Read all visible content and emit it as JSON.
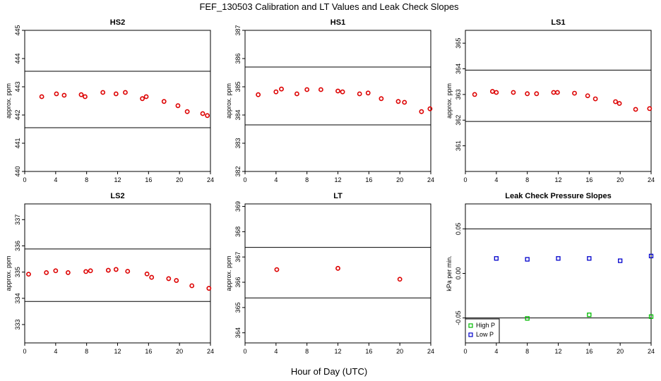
{
  "figure": {
    "title": "FEF_130503  Calibration and LT Values and Leak Check Slopes",
    "xlabel": "Hour of Day (UTC)"
  },
  "chart_data": [
    {
      "type": "scatter",
      "title": "HS2",
      "ylabel": "approx. ppm",
      "xlim": [
        0,
        24
      ],
      "ylim": [
        440,
        445
      ],
      "xticks": [
        0,
        4,
        8,
        12,
        16,
        20,
        24
      ],
      "yticks": [
        440,
        441,
        442,
        443,
        444,
        445
      ],
      "hlines": [
        443.55,
        441.55
      ],
      "grid": false,
      "series": [
        {
          "marker": "circle",
          "color": "#dd0000",
          "x": [
            2.2,
            4.1,
            5.1,
            7.3,
            7.8,
            10.1,
            11.8,
            13.0,
            15.2,
            15.7,
            18.0,
            19.8,
            21.0,
            23.0,
            23.6
          ],
          "y": [
            442.65,
            442.75,
            442.7,
            442.72,
            442.65,
            442.8,
            442.75,
            442.8,
            442.58,
            442.65,
            442.48,
            442.33,
            442.12,
            442.05,
            441.98
          ]
        }
      ]
    },
    {
      "type": "scatter",
      "title": "HS1",
      "ylabel": "approx. ppm",
      "xlim": [
        0,
        24
      ],
      "ylim": [
        382,
        387
      ],
      "xticks": [
        0,
        4,
        8,
        12,
        16,
        20,
        24
      ],
      "yticks": [
        382,
        383,
        384,
        385,
        386,
        387
      ],
      "hlines": [
        385.7,
        383.65
      ],
      "grid": false,
      "series": [
        {
          "marker": "circle",
          "color": "#dd0000",
          "x": [
            1.7,
            4.0,
            4.7,
            6.7,
            8.0,
            9.8,
            12.0,
            12.6,
            14.8,
            15.9,
            17.6,
            19.8,
            20.6,
            22.8,
            23.9
          ],
          "y": [
            384.72,
            384.82,
            384.92,
            384.75,
            384.9,
            384.9,
            384.85,
            384.82,
            384.75,
            384.78,
            384.58,
            384.48,
            384.45,
            384.12,
            384.22
          ]
        }
      ]
    },
    {
      "type": "scatter",
      "title": "LS1",
      "ylabel": "approx. ppm",
      "xlim": [
        0,
        24
      ],
      "ylim": [
        360,
        365.5
      ],
      "xticks": [
        0,
        4,
        8,
        12,
        16,
        20,
        24
      ],
      "yticks": [
        361,
        362,
        363,
        364,
        365
      ],
      "hlines": [
        363.95,
        361.95
      ],
      "grid": false,
      "series": [
        {
          "marker": "circle",
          "color": "#dd0000",
          "x": [
            1.2,
            3.5,
            4.0,
            6.2,
            8.0,
            9.2,
            11.4,
            11.9,
            14.1,
            15.8,
            16.8,
            19.4,
            19.9,
            22.0,
            23.8
          ],
          "y": [
            363.0,
            363.12,
            363.08,
            363.08,
            363.03,
            363.03,
            363.08,
            363.08,
            363.05,
            362.95,
            362.83,
            362.72,
            362.65,
            362.42,
            362.45
          ]
        }
      ]
    },
    {
      "type": "scatter",
      "title": "LS2",
      "ylabel": "approx. ppm",
      "xlim": [
        0,
        24
      ],
      "ylim": [
        332.3,
        337.6
      ],
      "xticks": [
        0,
        4,
        8,
        12,
        16,
        20,
        24
      ],
      "yticks": [
        333,
        334,
        335,
        336,
        337
      ],
      "hlines": [
        335.88,
        333.88
      ],
      "grid": false,
      "series": [
        {
          "marker": "circle",
          "color": "#dd0000",
          "x": [
            0.5,
            2.8,
            4.0,
            5.6,
            7.9,
            8.5,
            10.8,
            11.8,
            13.3,
            15.8,
            16.4,
            18.6,
            19.6,
            21.6,
            23.8
          ],
          "y": [
            334.92,
            334.98,
            335.05,
            334.98,
            335.02,
            335.05,
            335.07,
            335.1,
            335.03,
            334.93,
            334.8,
            334.75,
            334.68,
            334.48,
            334.38
          ]
        }
      ]
    },
    {
      "type": "scatter",
      "title": "LT",
      "ylabel": "approx. ppm",
      "xlim": [
        0,
        24
      ],
      "ylim": [
        363.6,
        369.1
      ],
      "xticks": [
        0,
        4,
        8,
        12,
        16,
        20,
        24
      ],
      "yticks": [
        364,
        365,
        366,
        367,
        368,
        369
      ],
      "hlines": [
        367.38,
        365.38
      ],
      "grid": false,
      "series": [
        {
          "marker": "circle",
          "color": "#dd0000",
          "x": [
            4.1,
            12.0,
            20.0
          ],
          "y": [
            366.5,
            366.55,
            366.12
          ]
        }
      ]
    },
    {
      "type": "scatter",
      "title": "Leak Check Pressure Slopes",
      "ylabel": "kPa per min.",
      "xlim": [
        0,
        24
      ],
      "ylim": [
        -0.078,
        0.078
      ],
      "xticks": [
        0,
        4,
        8,
        12,
        16,
        20,
        24
      ],
      "yticks": [
        -0.05,
        0.0,
        0.05
      ],
      "ytick_labels": [
        "-0.05",
        "0.00",
        "0.05"
      ],
      "hlines": [
        0.05,
        -0.05
      ],
      "grid": false,
      "legend": "bottom-left",
      "series": [
        {
          "name": "High P",
          "marker": "square",
          "color": "#00bb00",
          "x": [
            8.0,
            16.0,
            24.0
          ],
          "y": [
            -0.0505,
            -0.0465,
            -0.0485
          ]
        },
        {
          "name": "Low P",
          "marker": "square",
          "color": "#0000cc",
          "x": [
            4.0,
            8.0,
            12.0,
            16.0,
            20.0,
            24.0
          ],
          "y": [
            0.0168,
            0.0158,
            0.0168,
            0.0168,
            0.0142,
            0.0195
          ]
        }
      ]
    }
  ]
}
